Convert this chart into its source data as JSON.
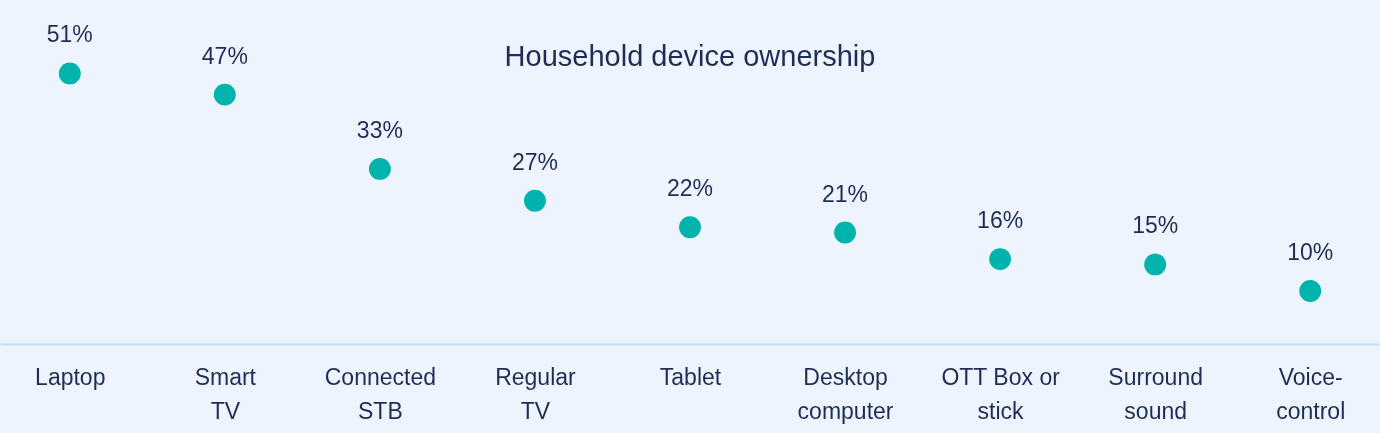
{
  "chart_data": {
    "type": "scatter",
    "title": "Household device ownership",
    "categories": [
      "Laptop",
      "Smart TV",
      "Connected STB",
      "Regular TV",
      "Tablet",
      "Desktop computer",
      "OTT Box or stick",
      "Surround sound",
      "Voice-control"
    ],
    "values": [
      51,
      47,
      33,
      27,
      22,
      21,
      16,
      15,
      10
    ],
    "value_labels": [
      "51%",
      "47%",
      "33%",
      "27%",
      "22%",
      "21%",
      "16%",
      "15%",
      "10%"
    ],
    "color": "#00b3ad",
    "marker": "circle",
    "grid": false
  }
}
